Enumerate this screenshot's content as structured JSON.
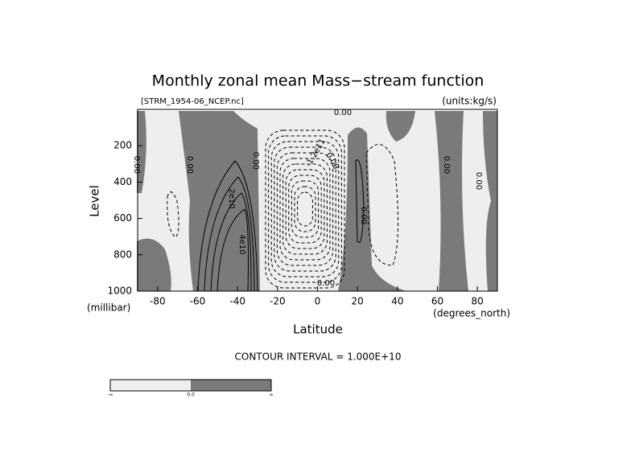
{
  "chart_data": {
    "type": "contour",
    "title": "Monthly zonal mean Mass−stream function",
    "subtitle_left": "[STRM_1954-06_NCEP.nc]",
    "subtitle_right": "(units:kg/s)",
    "x_label": "Latitude",
    "x_units": "(degrees_north)",
    "y_label": "Level",
    "y_units": "(millibar)",
    "xlim": [
      -90,
      90
    ],
    "xticks": [
      -80,
      -60,
      -40,
      -20,
      0,
      20,
      40,
      60,
      80
    ],
    "ylim": [
      1000,
      0
    ],
    "yticks": [
      200,
      400,
      600,
      800,
      1000
    ],
    "contour_labels": [
      "0.00",
      "0.00",
      "0.00",
      "2e10",
      "4e10",
      "0.00",
      "-1.2e11",
      "0.00",
      "0.00",
      "0.00",
      "0.00",
      "0.00"
    ],
    "contour_interval": "CONTOUR INTERVAL = 1.000E+10",
    "colorbar_labels": [
      "-∞",
      "0.0",
      "∞"
    ],
    "colors": {
      "negative": "#eeeeee",
      "positive": "#7a7a7a"
    }
  }
}
